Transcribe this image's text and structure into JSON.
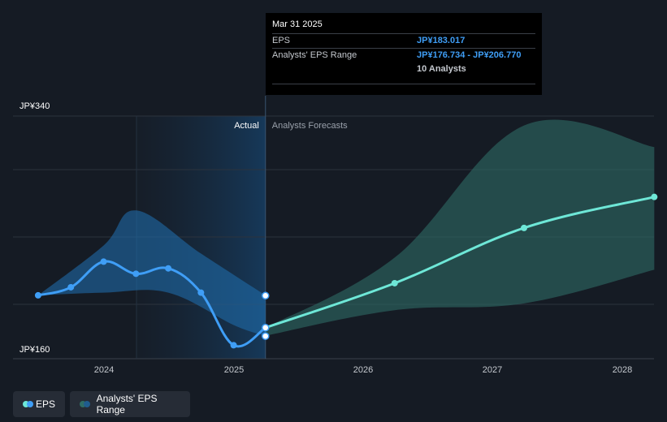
{
  "chart_data": {
    "type": "line",
    "currency_prefix": "JP¥",
    "y_axis": {
      "min": 160,
      "max": 340,
      "labels": [
        "JP¥340",
        "JP¥160"
      ]
    },
    "x_axis": {
      "ticks": [
        "2024",
        "2025",
        "2026",
        "2027",
        "2028"
      ]
    },
    "regions": {
      "actual_label": "Actual",
      "forecast_label": "Analysts Forecasts"
    },
    "series": [
      {
        "name": "EPS",
        "color": "#3f9ef6",
        "points": [
          {
            "x": "2023-06-30",
            "y": 207
          },
          {
            "x": "2023-09-30",
            "y": 213
          },
          {
            "x": "2023-12-31",
            "y": 232
          },
          {
            "x": "2024-03-31",
            "y": 223
          },
          {
            "x": "2024-06-30",
            "y": 227
          },
          {
            "x": "2024-09-30",
            "y": 209
          },
          {
            "x": "2024-12-31",
            "y": 170
          },
          {
            "x": "2025-03-31",
            "y": 183.017
          }
        ]
      },
      {
        "name": "EPS Forecast",
        "color": "#6ee7d7",
        "points": [
          {
            "x": "2025-03-31",
            "y": 183.017
          },
          {
            "x": "2026-03-31",
            "y": 216
          },
          {
            "x": "2027-03-31",
            "y": 257
          },
          {
            "x": "2028-03-31",
            "y": 280
          }
        ]
      }
    ],
    "actual_range_band": {
      "upper": [
        {
          "x": "2023-06-30",
          "y": 207
        },
        {
          "x": "2023-12-31",
          "y": 244
        },
        {
          "x": "2024-03-31",
          "y": 270
        },
        {
          "x": "2024-09-30",
          "y": 238
        },
        {
          "x": "2025-03-31",
          "y": 207
        }
      ],
      "lower": [
        {
          "x": "2023-06-30",
          "y": 207
        },
        {
          "x": "2023-12-31",
          "y": 209
        },
        {
          "x": "2024-06-30",
          "y": 209
        },
        {
          "x": "2024-12-31",
          "y": 185
        },
        {
          "x": "2025-03-31",
          "y": 177
        }
      ]
    },
    "forecast_range_band": {
      "upper": [
        {
          "x": "2025-03-31",
          "y": 183
        },
        {
          "x": "2026-03-31",
          "y": 235
        },
        {
          "x": "2027-03-31",
          "y": 333
        },
        {
          "x": "2028-03-31",
          "y": 317
        }
      ],
      "lower": [
        {
          "x": "2025-03-31",
          "y": 177
        },
        {
          "x": "2026-03-31",
          "y": 196
        },
        {
          "x": "2027-03-31",
          "y": 201
        },
        {
          "x": "2028-03-31",
          "y": 226
        }
      ]
    },
    "tooltip": {
      "date": "Mar 31 2025",
      "eps_label": "EPS",
      "eps_value": "JP¥183.017",
      "range_label": "Analysts' EPS Range",
      "range_value": "JP¥176.734 - JP¥206.770",
      "analysts": "10 Analysts"
    },
    "legend": [
      {
        "label": "EPS",
        "colors": [
          "#6ee7d7",
          "#3f9ef6"
        ]
      },
      {
        "label": "Analysts' EPS Range",
        "colors": [
          "#2f6d66",
          "#1f5c8e"
        ]
      }
    ],
    "grid": true
  }
}
